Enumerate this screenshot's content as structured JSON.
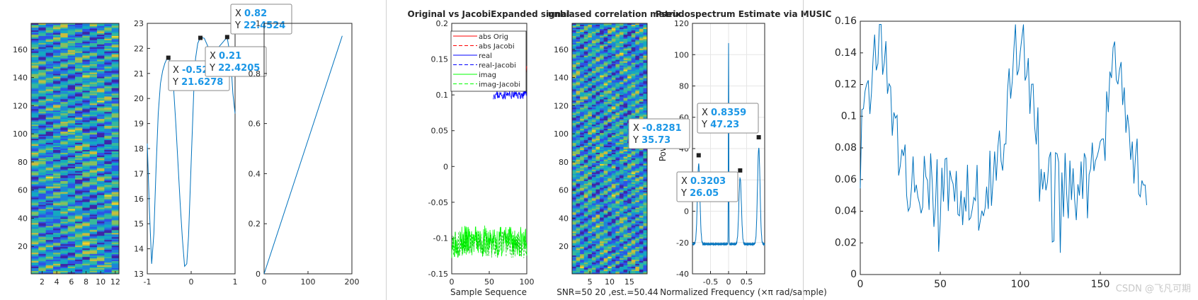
{
  "watermark": "CSDN @飞凡可期",
  "colors": {
    "line": "#0072bd",
    "tip_blue": "#1a96e6",
    "axis": "#262626"
  },
  "chart_data": [
    {
      "id": "heat1",
      "type": "heatmap",
      "xticks": [
        "2",
        "4",
        "6",
        "8",
        "10",
        "12"
      ],
      "yticks": [
        "20",
        "40",
        "60",
        "80",
        "100",
        "120",
        "140",
        "160"
      ],
      "xlim": [
        0.5,
        12.5
      ],
      "ylim": [
        0.5,
        178.5
      ]
    },
    {
      "id": "curve",
      "type": "line",
      "xticks": [
        "-1",
        "0",
        "1"
      ],
      "yticks": [
        "13",
        "14",
        "15",
        "16",
        "17",
        "18",
        "19",
        "20",
        "21",
        "22",
        "23"
      ],
      "xlim": [
        -1,
        1
      ],
      "ylim": [
        13,
        23
      ],
      "x": [
        -1,
        -0.95,
        -0.9,
        -0.85,
        -0.8,
        -0.75,
        -0.7,
        -0.65,
        -0.6,
        -0.55,
        -0.52,
        -0.45,
        -0.4,
        -0.35,
        -0.3,
        -0.25,
        -0.2,
        -0.15,
        -0.1,
        -0.06,
        -0.02,
        0.02,
        0.06,
        0.1,
        0.15,
        0.21,
        0.3,
        0.4,
        0.5,
        0.6,
        0.7,
        0.82,
        0.9,
        0.95,
        1
      ],
      "y": [
        18.2,
        15.5,
        13.4,
        14.6,
        17.2,
        19.4,
        20.6,
        21.1,
        21.4,
        21.6,
        21.63,
        21.3,
        20.4,
        19.0,
        17.4,
        15.8,
        14.4,
        13.3,
        13.4,
        14.5,
        16.5,
        18.4,
        20.3,
        21.6,
        22.2,
        22.45,
        22.4,
        22.0,
        21.9,
        22.0,
        22.2,
        22.45,
        21.6,
        20.2,
        19.4
      ],
      "tips": [
        {
          "x": -0.52,
          "y": 21.6278,
          "xs": "-0.52",
          "ys": "21.6278"
        },
        {
          "x": 0.21,
          "y": 22.4205,
          "xs": "0.21",
          "ys": "22.4205"
        },
        {
          "x": 0.82,
          "y": 22.4524,
          "xs": "0.82",
          "ys": "22.4524"
        }
      ]
    },
    {
      "id": "ramp",
      "type": "line",
      "xticks": [
        "0",
        "100",
        "200"
      ],
      "yticks": [
        "0",
        "0.2",
        "0.4",
        "0.6",
        "0.8",
        "1"
      ],
      "xlim": [
        0,
        200
      ],
      "ylim": [
        0,
        1
      ],
      "x": [
        0,
        178
      ],
      "y": [
        0,
        0.95
      ]
    },
    {
      "id": "jacobi",
      "type": "line",
      "title": "Original vs JacobiExpanded signal",
      "xlabel": "Sample Sequence",
      "xticks": [
        "0",
        "50",
        "100"
      ],
      "yticks": [
        "-0.15",
        "-0.1",
        "-0.05",
        "0",
        "0.05",
        "0.1",
        "0.15",
        "0.2"
      ],
      "xlim": [
        0,
        100
      ],
      "ylim": [
        -0.15,
        0.2
      ],
      "noise_band": {
        "center": -0.105,
        "spread": 0.012
      },
      "legend": [
        "abs Orig",
        "abs Jacobi",
        "real",
        "real-Jacobi",
        "imag",
        "imag-Jacobi"
      ],
      "legend_colors": [
        "#ff0000",
        "#ff0000",
        "#0000ff",
        "#0000ff",
        "#00ff00",
        "#00ff00"
      ],
      "legend_dashed": [
        false,
        true,
        false,
        true,
        false,
        true
      ]
    },
    {
      "id": "heat2",
      "type": "heatmap",
      "title": "unbiased correlation matrix",
      "xlabel": "SNR=50  20  ,est.=50.44",
      "xticks": [
        "5",
        "10",
        "15"
      ],
      "yticks": [
        "20",
        "40",
        "60",
        "80",
        "100",
        "120",
        "140",
        "160"
      ],
      "xlim": [
        0.5,
        19.5
      ],
      "ylim": [
        0.5,
        178.5
      ]
    },
    {
      "id": "music",
      "type": "line",
      "title": "Pseudospectrum Estimate via MUSIC",
      "xlabel": "Normalized Frequency  (×π rad/sample)",
      "ylabel": "Power",
      "xticks": [
        "-0.5",
        "0",
        "0.5"
      ],
      "yticks": [
        "-40",
        "-20",
        "0",
        "20",
        "40",
        "60",
        "80",
        "100",
        "120"
      ],
      "xlim": [
        -1,
        1
      ],
      "ylim": [
        -40,
        120
      ],
      "baseline": -21,
      "peaks": [
        {
          "x": -0.8281,
          "h": 35.73
        },
        {
          "x": 0.0,
          "h": 107
        },
        {
          "x": 0.3203,
          "h": 26.05
        },
        {
          "x": 0.8359,
          "h": 47.23
        }
      ],
      "tips": [
        {
          "x": -0.8281,
          "y": 35.73,
          "xs": "-0.8281",
          "ys": "35.73"
        },
        {
          "x": 0.3203,
          "y": 26.05,
          "xs": "0.3203",
          "ys": "26.05"
        },
        {
          "x": 0.8359,
          "y": 47.23,
          "xs": "0.8359",
          "ys": "47.23"
        }
      ]
    },
    {
      "id": "spectrum",
      "type": "line",
      "xticks": [
        "0",
        "50",
        "100",
        "150"
      ],
      "yticks": [
        "0",
        "0.02",
        "0.04",
        "0.06",
        "0.08",
        "0.1",
        "0.12",
        "0.14",
        "0.16"
      ],
      "xlim": [
        0,
        200
      ],
      "ylim": [
        0,
        0.16
      ],
      "n": 180,
      "envelope_peaks": [
        {
          "x": 12,
          "h": 0.155
        },
        {
          "x": 100,
          "h": 0.157
        },
        {
          "x": 160,
          "h": 0.135
        }
      ]
    }
  ]
}
